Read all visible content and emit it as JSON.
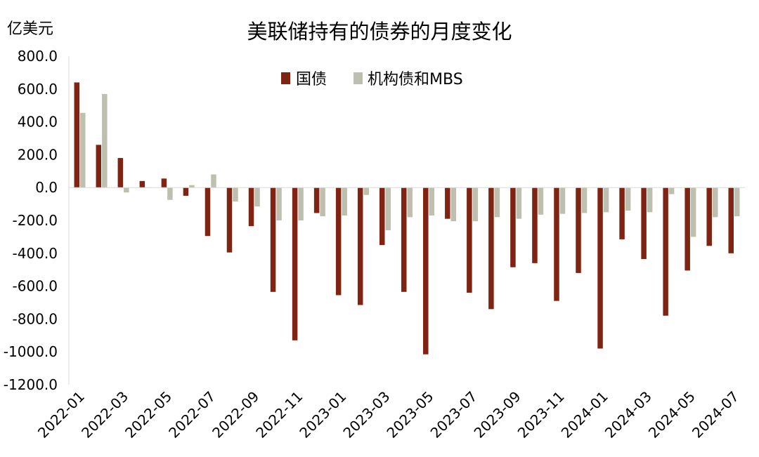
{
  "chart_data": {
    "type": "bar",
    "title": "美联储持有的债券的月度变化",
    "unit_label": "亿美元",
    "xlabel": "",
    "ylabel": "",
    "ylim": [
      -1200,
      800
    ],
    "y_ticks": [
      "800.0",
      "600.0",
      "400.0",
      "200.0",
      "0.0",
      "-200.0",
      "-400.0",
      "-600.0",
      "-800.0",
      "-1000.0",
      "-1200.0"
    ],
    "categories": [
      "2022-01",
      "2022-02",
      "2022-03",
      "2022-04",
      "2022-05",
      "2022-06",
      "2022-07",
      "2022-08",
      "2022-09",
      "2022-10",
      "2022-11",
      "2022-12",
      "2023-01",
      "2023-02",
      "2023-03",
      "2023-04",
      "2023-05",
      "2023-06",
      "2023-07",
      "2023-08",
      "2023-09",
      "2023-10",
      "2023-11",
      "2023-12",
      "2024-01",
      "2024-02",
      "2024-03",
      "2024-04",
      "2024-05",
      "2024-06",
      "2024-07"
    ],
    "x_tick_labels": [
      "2022-01",
      "2022-03",
      "2022-05",
      "2022-07",
      "2022-09",
      "2022-11",
      "2023-01",
      "2023-03",
      "2023-05",
      "2023-07",
      "2023-09",
      "2023-11",
      "2024-01",
      "2024-03",
      "2024-05",
      "2024-07"
    ],
    "x_tick_indices": [
      0,
      2,
      4,
      6,
      8,
      10,
      12,
      14,
      16,
      18,
      20,
      22,
      24,
      26,
      28,
      30
    ],
    "legend_position": "top-center",
    "grid": false,
    "series": [
      {
        "name": "国债",
        "color": "#7f2312",
        "values": [
          640,
          260,
          180,
          40,
          55,
          -50,
          -295,
          -395,
          -235,
          -635,
          -930,
          -155,
          -655,
          -715,
          -350,
          -635,
          -1015,
          -190,
          -640,
          -740,
          -485,
          -460,
          -690,
          -520,
          -980,
          -315,
          -435,
          -780,
          -505,
          -355,
          -400
        ]
      },
      {
        "name": "机构债和MBS",
        "color": "#bfbfaf",
        "values": [
          455,
          570,
          -30,
          0,
          -75,
          15,
          80,
          -85,
          -115,
          -200,
          -200,
          -175,
          -170,
          -45,
          -260,
          -180,
          -170,
          -205,
          -205,
          -180,
          -190,
          -165,
          -160,
          -155,
          -150,
          -140,
          -150,
          -40,
          -300,
          -180,
          -175
        ]
      }
    ]
  }
}
